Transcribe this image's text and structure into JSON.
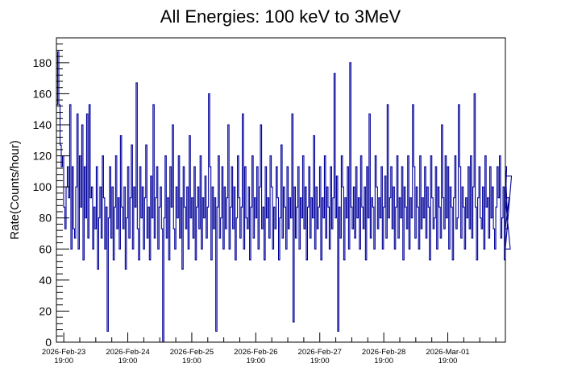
{
  "chart_data": {
    "type": "bar",
    "style": "step-histogram",
    "title": "All Energies:  100 keV to 3MeV",
    "xlabel": "",
    "ylabel": "Rate(Counts/hour)",
    "ylim": [
      0,
      196
    ],
    "yticks": [
      0,
      20,
      40,
      60,
      80,
      100,
      120,
      140,
      160,
      180
    ],
    "y_minor_step": 4,
    "x_unit": "days since 2026-Feb-23 19:00",
    "xlim": [
      -0.115,
      6.9
    ],
    "xticks": [
      {
        "value": 0,
        "date": "2026-Feb-23",
        "time": "19:00"
      },
      {
        "value": 1,
        "date": "2026-Feb-24",
        "time": "19:00"
      },
      {
        "value": 2,
        "date": "2026-Feb-25",
        "time": "19:00"
      },
      {
        "value": 3,
        "date": "2026-Feb-26",
        "time": "19:00"
      },
      {
        "value": 4,
        "date": "2026-Feb-27",
        "time": "19:00"
      },
      {
        "value": 5,
        "date": "2026-Feb-28",
        "time": "19:00"
      },
      {
        "value": 6,
        "date": "2026-Mar-01",
        "time": "19:00"
      }
    ],
    "x_minor_step": 0.25,
    "grid": false,
    "legend": "none",
    "series": [
      {
        "name": "Rate",
        "color": "#000099",
        "bin_start": -0.115,
        "bin_width": 0.01886,
        "values": [
          153,
          187,
          153,
          127,
          113,
          120,
          87,
          73,
          100,
          113,
          93,
          153,
          60,
          113,
          73,
          67,
          100,
          147,
          60,
          120,
          87,
          140,
          53,
          113,
          80,
          147,
          67,
          153,
          93,
          100,
          60,
          87,
          73,
          113,
          47,
          80,
          100,
          67,
          120,
          93,
          60,
          87,
          7,
          80,
          113,
          67,
          100,
          53,
          87,
          120,
          73,
          93,
          60,
          133,
          87,
          73,
          100,
          47,
          80,
          113,
          67,
          93,
          127,
          60,
          100,
          87,
          167,
          73,
          53,
          113,
          80,
          100,
          60,
          93,
          127,
          67,
          87,
          53,
          107,
          80,
          153,
          67,
          93,
          113,
          60,
          87,
          100,
          73,
          0,
          80,
          120,
          67,
          93,
          53,
          113,
          87,
          140,
          73,
          60,
          100,
          80,
          120,
          67,
          93,
          47,
          113,
          87,
          73,
          100,
          60,
          133,
          80,
          93,
          67,
          113,
          53,
          87,
          100,
          73,
          120,
          60,
          93,
          80,
          107,
          67,
          87,
          160,
          113,
          53,
          100,
          73,
          93,
          7,
          87,
          120,
          67,
          80,
          113,
          60,
          100,
          73,
          93,
          140,
          60,
          87,
          113,
          73,
          100,
          53,
          80,
          120,
          93,
          67,
          87,
          147,
          60,
          113,
          80,
          73,
          100,
          53,
          87,
          120,
          67,
          93,
          80,
          113,
          60,
          100,
          140,
          73,
          87,
          53,
          113,
          80,
          93,
          67,
          120,
          100,
          60,
          87,
          73,
          113,
          93,
          53,
          80,
          127,
          67,
          100,
          87,
          60,
          113,
          73,
          93,
          80,
          147,
          13,
          100,
          67,
          87,
          113,
          60,
          93,
          80,
          120,
          73,
          100,
          53,
          87,
          113,
          67,
          93,
          80,
          133,
          60,
          100,
          73,
          87,
          113,
          53,
          93,
          80,
          120,
          67,
          100,
          87,
          60,
          113,
          73,
          93,
          173,
          80,
          107,
          7,
          87,
          67,
          120,
          100,
          53,
          93,
          80,
          113,
          60,
          180,
          87,
          73,
          100,
          67,
          113,
          80,
          93,
          60,
          120,
          87,
          73,
          100,
          53,
          113,
          80,
          147,
          67,
          93,
          87,
          60,
          120,
          100,
          73,
          93,
          80,
          113,
          60,
          87,
          107,
          67,
          153,
          80,
          93,
          113,
          73,
          100,
          60,
          87,
          120,
          67,
          93,
          80,
          113,
          53,
          100,
          87,
          73,
          120,
          60,
          93,
          80,
          153,
          113,
          67,
          100,
          87,
          60,
          120,
          73,
          93,
          80,
          113,
          67,
          100,
          87,
          53,
          120,
          93,
          73,
          80,
          113,
          60,
          100,
          87,
          67,
          140,
          93,
          73,
          120,
          80,
          113,
          60,
          100,
          87,
          53,
          93,
          120,
          73,
          80,
          153,
          113,
          67,
          100,
          87,
          60,
          93,
          80,
          113,
          73,
          120,
          67,
          100,
          160,
          87,
          53,
          93,
          113,
          80,
          73,
          100,
          60,
          120,
          87,
          93,
          67,
          113,
          80,
          100,
          73,
          60,
          87,
          113,
          93,
          120,
          67,
          80,
          100,
          53,
          87,
          113,
          73,
          93,
          60,
          107
        ]
      }
    ]
  }
}
